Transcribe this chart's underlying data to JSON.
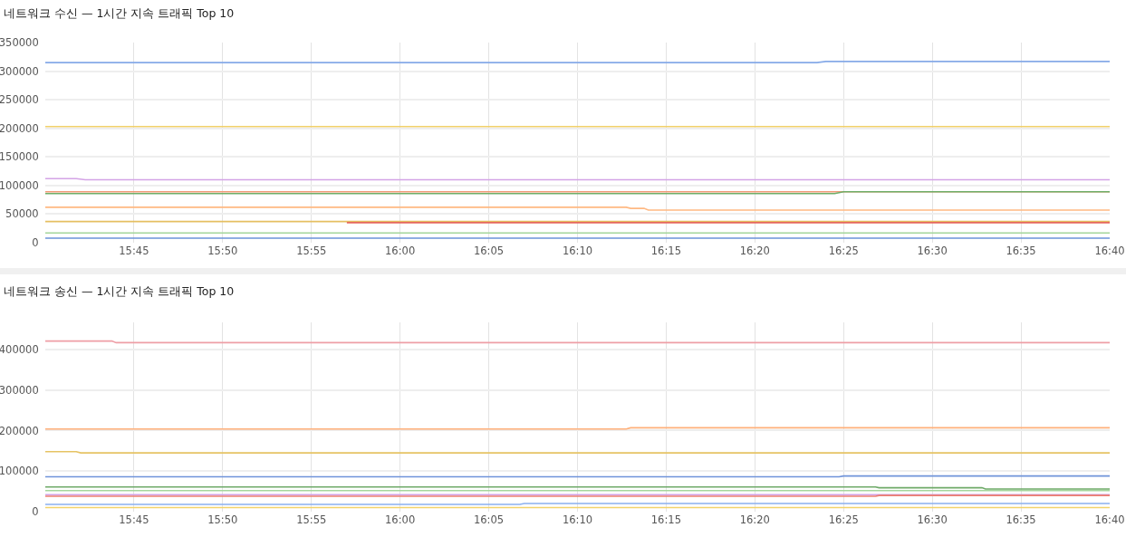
{
  "chart_data": [
    {
      "type": "line",
      "title": "네트워크 수신 — 1시간 지속 트래픽 Top 10",
      "xlim": [
        15.6667,
        16.6667
      ],
      "xticks": [
        {
          "value": 15.75,
          "label": "15:45"
        },
        {
          "value": 15.8333,
          "label": "15:50"
        },
        {
          "value": 15.9167,
          "label": "15:55"
        },
        {
          "value": 16,
          "label": "16:00"
        },
        {
          "value": 16.0833,
          "label": "16:05"
        },
        {
          "value": 16.1667,
          "label": "16:10"
        },
        {
          "value": 16.25,
          "label": "16:15"
        },
        {
          "value": 16.3333,
          "label": "16:20"
        },
        {
          "value": 16.4167,
          "label": "16:25"
        },
        {
          "value": 16.5,
          "label": "16:30"
        },
        {
          "value": 16.5833,
          "label": "16:35"
        },
        {
          "value": 16.6667,
          "label": "16:40"
        }
      ],
      "ylim": [
        0,
        350000
      ],
      "yticks": [
        0,
        50000,
        100000,
        150000,
        200000,
        250000,
        300000,
        350000
      ],
      "grid": true,
      "series": [
        {
          "color": "#86aae8",
          "x": [
            15.6667,
            16.3917,
            16.4,
            16.6667
          ],
          "values": [
            315000,
            315000,
            317000,
            317000
          ]
        },
        {
          "color": "#f1d06a",
          "x": [
            15.6667,
            16.6667
          ],
          "values": [
            203000,
            203000
          ]
        },
        {
          "color": "#d4a3e6",
          "x": [
            15.6667,
            15.6958,
            15.7042,
            16.6667
          ],
          "values": [
            112000,
            112000,
            110000,
            110000
          ]
        },
        {
          "color": "#f29a78",
          "x": [
            15.6667,
            16.6667
          ],
          "values": [
            89000,
            89000
          ]
        },
        {
          "color": "#6fae68",
          "x": [
            15.6667,
            16.4083,
            16.4167,
            16.6667
          ],
          "values": [
            86000,
            86000,
            89000,
            89000
          ]
        },
        {
          "color": "#ffb983",
          "x": [
            15.6667,
            16.2125,
            16.2167,
            16.2292,
            16.2333,
            16.6667
          ],
          "values": [
            62000,
            62000,
            60000,
            60000,
            57000,
            57000
          ]
        },
        {
          "color": "#e5bf62",
          "x": [
            15.6667,
            16.6667
          ],
          "values": [
            37000,
            37000
          ]
        },
        {
          "color": "#e6675c",
          "x": [
            15.95,
            16.6667
          ],
          "values": [
            35000,
            35000
          ]
        },
        {
          "color": "#a3d69b",
          "x": [
            15.6667,
            16.6667
          ],
          "values": [
            17000,
            17000
          ]
        },
        {
          "color": "#6a92d8",
          "x": [
            15.6667,
            16.6667
          ],
          "values": [
            8000,
            8000
          ]
        }
      ]
    },
    {
      "type": "line",
      "title": "네트워크 송신 — 1시간 지속 트래픽 Top 10",
      "xlim": [
        15.6667,
        16.6667
      ],
      "xticks": [
        {
          "value": 15.75,
          "label": "15:45"
        },
        {
          "value": 15.8333,
          "label": "15:50"
        },
        {
          "value": 15.9167,
          "label": "15:55"
        },
        {
          "value": 16,
          "label": "16:00"
        },
        {
          "value": 16.0833,
          "label": "16:05"
        },
        {
          "value": 16.1667,
          "label": "16:10"
        },
        {
          "value": 16.25,
          "label": "16:15"
        },
        {
          "value": 16.3333,
          "label": "16:20"
        },
        {
          "value": 16.4167,
          "label": "16:25"
        },
        {
          "value": 16.5,
          "label": "16:30"
        },
        {
          "value": 16.5833,
          "label": "16:35"
        },
        {
          "value": 16.6667,
          "label": "16:40"
        }
      ],
      "ylim": [
        0,
        467000
      ],
      "yticks": [
        0,
        100000,
        200000,
        300000,
        400000
      ],
      "grid": true,
      "series": [
        {
          "color": "#ee9ea6",
          "x": [
            15.6667,
            15.7292,
            15.7333,
            16.6667
          ],
          "values": [
            421000,
            421000,
            417000,
            417000
          ]
        },
        {
          "color": "#ffb07a",
          "x": [
            15.6667,
            16.2125,
            16.2167,
            16.6667
          ],
          "values": [
            204000,
            204000,
            207000,
            207000
          ]
        },
        {
          "color": "#e6c364",
          "x": [
            15.6667,
            15.6958,
            15.7,
            16.6667
          ],
          "values": [
            148000,
            148000,
            145000,
            145000
          ]
        },
        {
          "color": "#6f93d9",
          "x": [
            15.6667,
            16.4125,
            16.4167,
            16.6667
          ],
          "values": [
            86000,
            86000,
            88000,
            88000
          ]
        },
        {
          "color": "#6eaa68",
          "x": [
            15.6667,
            16.4467,
            16.45,
            16.5467,
            16.55,
            16.6667
          ],
          "values": [
            61000,
            61000,
            59000,
            59000,
            56000,
            56000
          ]
        },
        {
          "color": "#a5d69d",
          "x": [
            15.6667,
            16.6667
          ],
          "values": [
            52000,
            52000
          ]
        },
        {
          "color": "#d4a3e6",
          "x": [
            15.6667,
            16.6667
          ],
          "values": [
            42000,
            42000
          ]
        },
        {
          "color": "#ec7f70",
          "x": [
            15.6667,
            16.4467,
            16.45,
            16.6667
          ],
          "values": [
            38000,
            38000,
            40000,
            40000
          ]
        },
        {
          "color": "#8ab0f0",
          "x": [
            15.6667,
            16.1125,
            16.1167,
            16.6667
          ],
          "values": [
            18000,
            18000,
            20000,
            20000
          ]
        },
        {
          "color": "#f2d36b",
          "x": [
            15.6667,
            16.6667
          ],
          "values": [
            10000,
            10000
          ]
        }
      ]
    }
  ]
}
